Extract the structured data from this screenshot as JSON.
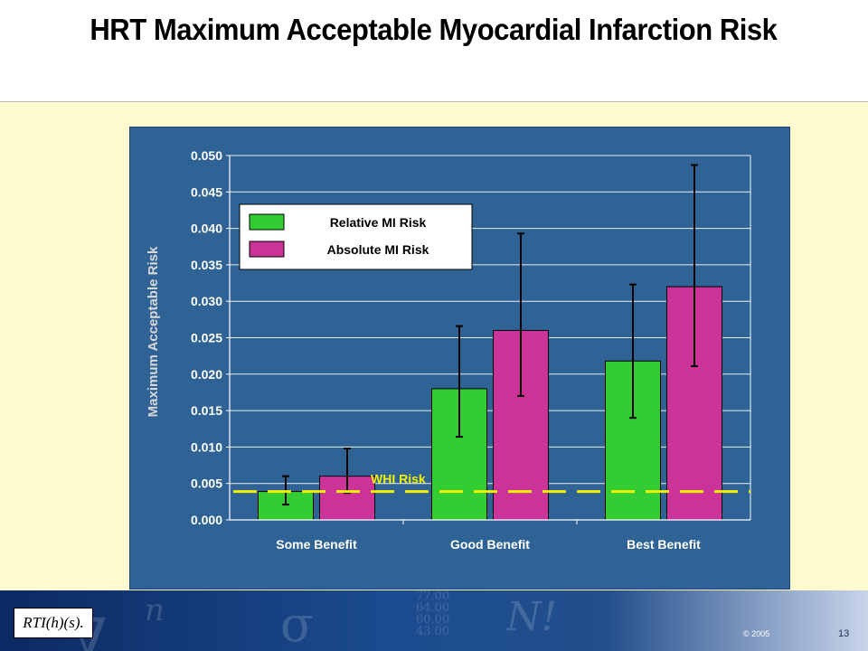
{
  "slide": {
    "title": "HRT Maximum Acceptable Myocardial Infarction Risk",
    "copyright": "© 2005",
    "page_number": "13",
    "logo_text": "RTI(h)(s)."
  },
  "colors": {
    "panel": "#2f6295",
    "relative": "#33cc33",
    "absolute": "#cc3399",
    "whi_line": "#f0f000",
    "cream": "#fff9d0"
  },
  "chart_data": {
    "type": "bar",
    "title": "",
    "xlabel": "",
    "ylabel": "Maximum Acceptable Risk",
    "ylim": [
      0,
      0.05
    ],
    "yticks": [
      "0.000",
      "0.005",
      "0.010",
      "0.015",
      "0.020",
      "0.025",
      "0.030",
      "0.035",
      "0.040",
      "0.045",
      "0.050"
    ],
    "categories": [
      "Some Benefit",
      "Good Benefit",
      "Best Benefit"
    ],
    "series": [
      {
        "name": "Relative MI Risk",
        "color": "#33cc33",
        "values": [
          0.0039,
          0.018,
          0.0218
        ],
        "error_low": [
          0.0021,
          0.0114,
          0.014
        ],
        "error_high": [
          0.006,
          0.0266,
          0.0323
        ]
      },
      {
        "name": "Absolute MI Risk",
        "color": "#cc3399",
        "values": [
          0.006,
          0.026,
          0.032
        ],
        "error_low": [
          0.0037,
          0.017,
          0.0211
        ],
        "error_high": [
          0.0098,
          0.0393,
          0.0487
        ]
      }
    ],
    "reference_line": {
      "label": "WHI Risk",
      "value": 0.0039,
      "style": "dashed",
      "color": "#f0f000"
    },
    "grid": true,
    "legend": "top-left"
  }
}
